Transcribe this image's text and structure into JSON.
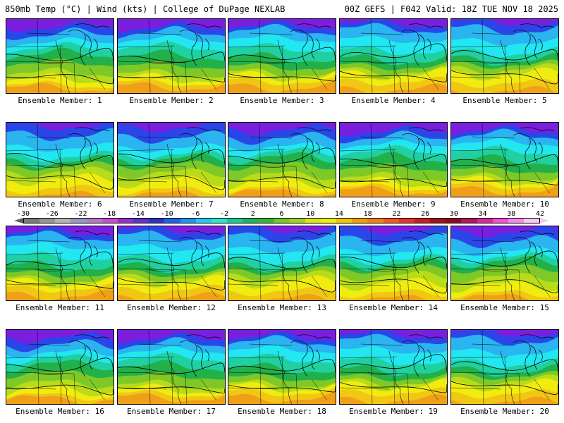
{
  "header": {
    "title": "850mb Temp (°C) | Wind (kts) | College of DuPage NEXLAB",
    "run_info": "00Z GEFS | F042 Valid: 18Z TUE NOV 18 2025"
  },
  "members": [
    "Ensemble Member: 1",
    "Ensemble Member: 2",
    "Ensemble Member: 3",
    "Ensemble Member: 4",
    "Ensemble Member: 5",
    "Ensemble Member: 6",
    "Ensemble Member: 7",
    "Ensemble Member: 8",
    "Ensemble Member: 9",
    "Ensemble Member: 10",
    "Ensemble Member: 11",
    "Ensemble Member: 12",
    "Ensemble Member: 13",
    "Ensemble Member: 14",
    "Ensemble Member: 15",
    "Ensemble Member: 16",
    "Ensemble Member: 17",
    "Ensemble Member: 18",
    "Ensemble Member: 19",
    "Ensemble Member: 20"
  ],
  "colorbar": {
    "ticks": [
      "-30",
      "-26",
      "-22",
      "-18",
      "-14",
      "-10",
      "-6",
      "-2",
      "2",
      "6",
      "10",
      "14",
      "18",
      "22",
      "26",
      "30",
      "34",
      "38",
      "42"
    ],
    "colors": [
      "#7a7a7a",
      "#969696",
      "#b4b4b4",
      "#9696c8",
      "#b478c8",
      "#c850c8",
      "#9632c8",
      "#6432c8",
      "#3232c8",
      "#1e64e6",
      "#1e96f0",
      "#28c8f0",
      "#28e6d2",
      "#1ec896",
      "#1eb464",
      "#3cb43c",
      "#78c828",
      "#a0d21e",
      "#dce614",
      "#f0f000",
      "#f0c800",
      "#f0a000",
      "#f08214",
      "#f05a1e",
      "#e63232",
      "#c81e1e",
      "#a01414",
      "#8c0a28",
      "#b41464",
      "#dc28a0",
      "#f050dc",
      "#f08cf0",
      "#f8c8f8"
    ]
  },
  "map_colors": {
    "purple": "#7a1ee0",
    "blue": "#2a46e8",
    "lightblue": "#2ab4f0",
    "cyan": "#22e6f0",
    "teal": "#20d0a0",
    "green": "#22b04a",
    "lightgreen": "#7ec828",
    "yellowgreen": "#b8dc1a",
    "yellow": "#f0ec10",
    "gold": "#f0c814",
    "orange": "#f0a018"
  }
}
